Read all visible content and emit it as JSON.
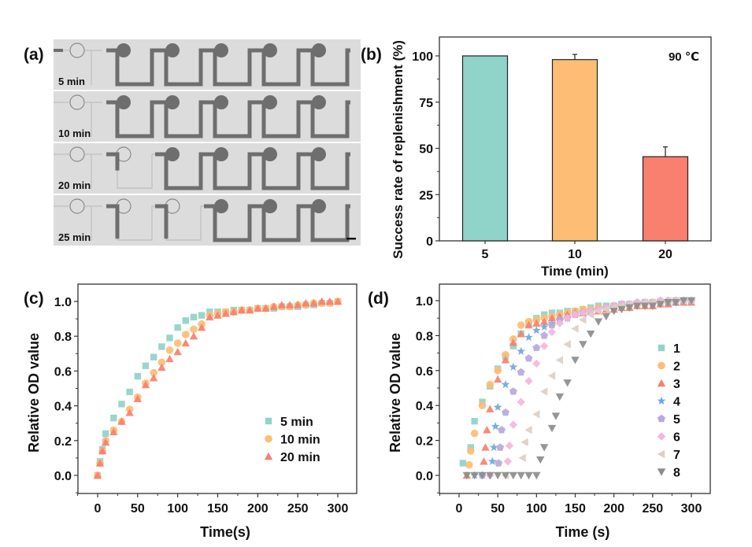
{
  "panel_labels": {
    "a": "(a)",
    "b": "(b)",
    "c": "(c)",
    "d": "(d)"
  },
  "panel_a": {
    "type": "micrograph",
    "description": "Microfluidic channel array replenishment over time",
    "rows": [
      {
        "label": "5 min",
        "filled_units": [
          1,
          1,
          1,
          1,
          1
        ],
        "partial_unit": null
      },
      {
        "label": "10 min",
        "filled_units": [
          1,
          1,
          1,
          1,
          1
        ],
        "partial_unit": null
      },
      {
        "label": "20 min",
        "filled_units": [
          0.3,
          1,
          1,
          1,
          1
        ],
        "partial_unit": 0
      },
      {
        "label": "25 min",
        "filled_units": [
          0.6,
          0.6,
          1,
          1,
          1
        ],
        "partial_unit": null
      }
    ],
    "colors": {
      "background": "#d9d9d9",
      "channel_filled": "#6e6e6e",
      "channel_empty": "#bdbdbd"
    }
  },
  "chart_data": [
    {
      "id": "b",
      "type": "bar",
      "title": "",
      "annotation": "90 ℃",
      "categories": [
        "5",
        "10",
        "20"
      ],
      "values": [
        100,
        98,
        45.5
      ],
      "errors": [
        0,
        2.8,
        5.3
      ],
      "colors": [
        "#8fd3c9",
        "#fdbd74",
        "#f97f6e"
      ],
      "xlabel": "Time (min)",
      "ylabel": "Success rate of replenishment (%)",
      "ylim": [
        0,
        110
      ],
      "yticks": [
        0,
        25,
        50,
        75,
        100
      ],
      "yticklabels": [
        "0",
        "25",
        "50",
        "75",
        "100"
      ],
      "grid": false
    },
    {
      "id": "c",
      "type": "scatter",
      "xlabel": "Time(s)",
      "ylabel": "Relative OD value",
      "xlim": [
        -25,
        320
      ],
      "ylim": [
        -0.1,
        1.08
      ],
      "xticks": [
        0,
        50,
        100,
        150,
        200,
        250,
        300
      ],
      "xticklabels": [
        "0",
        "50",
        "100",
        "150",
        "200",
        "250",
        "300"
      ],
      "yticks": [
        0.0,
        0.2,
        0.4,
        0.6,
        0.8,
        1.0
      ],
      "yticklabels": [
        "0.0",
        "0.2",
        "0.4",
        "0.6",
        "0.8",
        "1.0"
      ],
      "legend": "center-right",
      "grid": false,
      "series": [
        {
          "name": "5 min",
          "marker": "square",
          "color": "#8fd3c9",
          "x": [
            0,
            3,
            6,
            10,
            20,
            30,
            40,
            50,
            60,
            70,
            80,
            90,
            100,
            110,
            120,
            130,
            140,
            150,
            160,
            170,
            180,
            190,
            200,
            210,
            220,
            230,
            240,
            250,
            260,
            270,
            280,
            290,
            300
          ],
          "y": [
            0,
            0.08,
            0.15,
            0.24,
            0.33,
            0.41,
            0.48,
            0.57,
            0.63,
            0.68,
            0.74,
            0.79,
            0.85,
            0.89,
            0.91,
            0.92,
            0.94,
            0.94,
            0.94,
            0.95,
            0.95,
            0.95,
            0.96,
            0.96,
            0.96,
            0.97,
            0.97,
            0.97,
            0.98,
            0.98,
            0.99,
            0.99,
            1.0
          ]
        },
        {
          "name": "10 min",
          "marker": "circle",
          "color": "#fdbd74",
          "x": [
            0,
            3,
            6,
            10,
            20,
            30,
            40,
            50,
            60,
            70,
            80,
            90,
            100,
            110,
            120,
            130,
            140,
            150,
            160,
            170,
            180,
            190,
            200,
            210,
            220,
            230,
            240,
            250,
            260,
            270,
            280,
            290,
            300
          ],
          "y": [
            0,
            0.07,
            0.14,
            0.2,
            0.26,
            0.31,
            0.38,
            0.45,
            0.53,
            0.59,
            0.65,
            0.72,
            0.76,
            0.81,
            0.84,
            0.87,
            0.92,
            0.93,
            0.94,
            0.94,
            0.95,
            0.95,
            0.96,
            0.96,
            0.97,
            0.97,
            0.97,
            0.98,
            0.98,
            0.99,
            0.99,
            0.99,
            1.0
          ]
        },
        {
          "name": "20 min",
          "marker": "triangle",
          "color": "#f97f6e",
          "x": [
            0,
            3,
            6,
            10,
            20,
            30,
            40,
            50,
            60,
            70,
            80,
            90,
            100,
            110,
            120,
            130,
            140,
            150,
            160,
            170,
            180,
            190,
            200,
            210,
            220,
            230,
            240,
            250,
            260,
            270,
            280,
            290,
            300
          ],
          "y": [
            0,
            0.07,
            0.14,
            0.19,
            0.25,
            0.31,
            0.36,
            0.44,
            0.52,
            0.56,
            0.62,
            0.67,
            0.71,
            0.76,
            0.8,
            0.85,
            0.91,
            0.92,
            0.93,
            0.94,
            0.95,
            0.95,
            0.96,
            0.96,
            0.97,
            0.98,
            0.98,
            0.98,
            0.99,
            0.99,
            1.0,
            1.0,
            1.0
          ]
        }
      ]
    },
    {
      "id": "d",
      "type": "scatter",
      "xlabel": "Time (s)",
      "ylabel": "Relative OD value",
      "xlim": [
        -25,
        320
      ],
      "ylim": [
        -0.1,
        1.08
      ],
      "xticks": [
        0,
        50,
        100,
        150,
        200,
        250,
        300
      ],
      "xticklabels": [
        "0",
        "50",
        "100",
        "150",
        "200",
        "250",
        "300"
      ],
      "yticks": [
        0.0,
        0.2,
        0.4,
        0.6,
        0.8,
        1.0
      ],
      "yticklabels": [
        "0.0",
        "0.2",
        "0.4",
        "0.6",
        "0.8",
        "1.0"
      ],
      "legend": "center-right",
      "grid": false,
      "series": [
        {
          "name": "1",
          "marker": "square",
          "color": "#8fd3c9",
          "x": [
            5,
            15,
            20,
            30,
            40,
            50,
            60,
            70,
            80,
            90,
            100,
            110,
            120,
            130,
            140,
            150,
            160,
            170,
            180,
            190,
            200,
            210,
            220,
            230,
            240,
            250,
            260,
            270,
            280,
            290,
            300
          ],
          "y": [
            0.07,
            0.16,
            0.31,
            0.42,
            0.51,
            0.61,
            0.68,
            0.74,
            0.81,
            0.87,
            0.9,
            0.92,
            0.93,
            0.93,
            0.94,
            0.94,
            0.95,
            0.96,
            0.97,
            0.97,
            0.97,
            0.98,
            0.98,
            0.98,
            0.99,
            0.99,
            0.99,
            0.99,
            1.0,
            1.0,
            1.0
          ]
        },
        {
          "name": "2",
          "marker": "circle",
          "color": "#fdbd74",
          "x": [
            13,
            15,
            20,
            30,
            40,
            50,
            60,
            70,
            80,
            90,
            100,
            110,
            120,
            130,
            140,
            150,
            160,
            170,
            180,
            190,
            200,
            210,
            220,
            230,
            240,
            250,
            260,
            270,
            280,
            290,
            300
          ],
          "y": [
            0.06,
            0.14,
            0.24,
            0.4,
            0.52,
            0.6,
            0.69,
            0.78,
            0.86,
            0.88,
            0.89,
            0.9,
            0.91,
            0.92,
            0.93,
            0.94,
            0.95,
            0.95,
            0.96,
            0.96,
            0.97,
            0.97,
            0.98,
            0.98,
            0.98,
            0.99,
            0.99,
            0.99,
            1.0,
            1.0,
            1.0
          ]
        },
        {
          "name": "3",
          "marker": "triangle",
          "color": "#f97f6e",
          "x": [
            10,
            32,
            34,
            36,
            40,
            50,
            60,
            70,
            80,
            90,
            100,
            110,
            120,
            130,
            140,
            150,
            160,
            170,
            180,
            190,
            200,
            210,
            220,
            230,
            240,
            250,
            260,
            270,
            280,
            290,
            300
          ],
          "y": [
            0.0,
            0.08,
            0.16,
            0.26,
            0.38,
            0.55,
            0.66,
            0.76,
            0.81,
            0.86,
            0.87,
            0.88,
            0.9,
            0.91,
            0.92,
            0.93,
            0.93,
            0.94,
            0.94,
            0.95,
            0.95,
            0.96,
            0.96,
            0.97,
            0.97,
            0.97,
            0.98,
            0.98,
            0.99,
            0.99,
            0.99
          ]
        },
        {
          "name": "4",
          "marker": "star",
          "color": "#6ea7d8",
          "x": [
            20,
            43,
            45,
            47,
            50,
            60,
            70,
            80,
            90,
            100,
            110,
            120,
            130,
            140,
            150,
            160,
            170,
            180,
            190,
            200,
            210,
            220,
            230,
            240,
            250,
            260,
            270,
            280,
            290,
            300
          ],
          "y": [
            0.0,
            0.08,
            0.16,
            0.28,
            0.39,
            0.52,
            0.62,
            0.71,
            0.79,
            0.83,
            0.85,
            0.87,
            0.89,
            0.9,
            0.92,
            0.93,
            0.94,
            0.95,
            0.96,
            0.96,
            0.97,
            0.97,
            0.98,
            0.98,
            0.98,
            0.99,
            0.99,
            0.99,
            1.0,
            1.0
          ]
        },
        {
          "name": "5",
          "marker": "pentagon",
          "color": "#b9a8dd",
          "x": [
            30,
            51,
            53,
            55,
            60,
            70,
            80,
            90,
            100,
            110,
            120,
            130,
            140,
            150,
            160,
            170,
            180,
            190,
            200,
            210,
            220,
            230,
            240,
            250,
            260,
            270,
            280,
            290,
            300
          ],
          "y": [
            0.0,
            0.07,
            0.16,
            0.26,
            0.36,
            0.48,
            0.59,
            0.67,
            0.73,
            0.8,
            0.86,
            0.89,
            0.9,
            0.92,
            0.93,
            0.94,
            0.95,
            0.96,
            0.97,
            0.98,
            0.98,
            0.99,
            0.99,
            0.99,
            1.0,
            1.0,
            1.0,
            1.0,
            1.0
          ]
        },
        {
          "name": "6",
          "marker": "diamond",
          "color": "#f3b6dc",
          "x": [
            40,
            63,
            65,
            70,
            80,
            90,
            100,
            110,
            120,
            130,
            140,
            150,
            160,
            170,
            180,
            190,
            200,
            210,
            220,
            230,
            240,
            250,
            260,
            270,
            280,
            290,
            300
          ],
          "y": [
            0.0,
            0.08,
            0.17,
            0.29,
            0.42,
            0.54,
            0.64,
            0.74,
            0.82,
            0.87,
            0.9,
            0.92,
            0.93,
            0.94,
            0.95,
            0.96,
            0.97,
            0.98,
            0.98,
            0.99,
            0.99,
            0.99,
            1.0,
            1.0,
            1.0,
            1.0,
            1.0
          ]
        },
        {
          "name": "7",
          "marker": "triangle-left",
          "color": "#dccfc6",
          "x": [
            60,
            82,
            85,
            90,
            100,
            110,
            120,
            130,
            140,
            150,
            160,
            170,
            180,
            190,
            200,
            210,
            220,
            230,
            240,
            250,
            260,
            270,
            280,
            290,
            300
          ],
          "y": [
            0.0,
            0.1,
            0.19,
            0.26,
            0.35,
            0.48,
            0.57,
            0.66,
            0.75,
            0.84,
            0.89,
            0.92,
            0.94,
            0.95,
            0.96,
            0.97,
            0.98,
            0.98,
            0.99,
            0.99,
            0.99,
            1.0,
            1.0,
            1.0,
            1.0
          ]
        },
        {
          "name": "8",
          "marker": "triangle-down",
          "color": "#8c8c8c",
          "x": [
            10,
            20,
            30,
            40,
            50,
            60,
            70,
            80,
            90,
            100,
            105,
            110,
            120,
            125,
            130,
            140,
            150,
            160,
            170,
            180,
            190,
            200,
            210,
            220,
            230,
            240,
            250,
            260,
            270,
            280,
            290,
            300
          ],
          "y": [
            0,
            0,
            0,
            0,
            0,
            0,
            0,
            0,
            0,
            0,
            0.09,
            0.16,
            0.27,
            0.34,
            0.45,
            0.53,
            0.66,
            0.75,
            0.81,
            0.88,
            0.91,
            0.94,
            0.95,
            0.96,
            0.97,
            0.97,
            0.97,
            0.98,
            0.99,
            0.99,
            1.0,
            1.0
          ]
        }
      ]
    }
  ]
}
